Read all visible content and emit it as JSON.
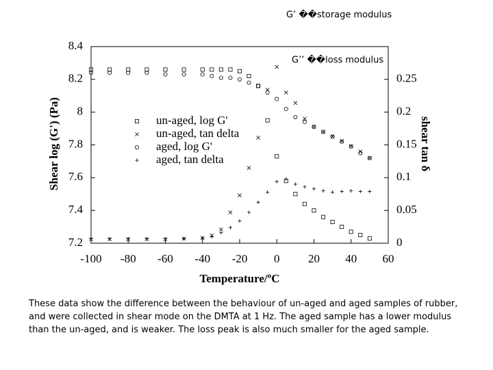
{
  "chart_data": {
    "type": "scatter",
    "annotations": [
      "G’ ��storage modulus",
      "G’’ ��loss modulus"
    ],
    "xlabel": "Temperature/ºC",
    "ylabel": "Shear log (G') (Pa)",
    "y2label": "shear tan δ",
    "xlim": [
      -100,
      60
    ],
    "xticks": [
      -100,
      -80,
      -60,
      -40,
      -20,
      0,
      20,
      40,
      60
    ],
    "ylim": [
      7.2,
      8.4
    ],
    "yticks": [
      7.2,
      7.4,
      7.6,
      7.8,
      8,
      8.2,
      8.4
    ],
    "y2lim": [
      0,
      0.3
    ],
    "y2ticks": [
      0,
      0.05,
      0.1,
      0.15,
      0.2,
      0.25
    ],
    "grid": false,
    "legend": "center-left",
    "series": [
      {
        "name": "un-aged, log G'",
        "color": "#000000",
        "marker": "square",
        "x": [
          -100,
          -90,
          -80,
          -70,
          -60,
          -50,
          -40,
          -35,
          -30,
          -25,
          -20,
          -15,
          -10,
          -5,
          0,
          5,
          10,
          15,
          20,
          25,
          30,
          35,
          40,
          45,
          50
        ],
        "values": [
          8.26,
          8.26,
          8.26,
          8.26,
          8.26,
          8.26,
          8.26,
          8.26,
          8.26,
          8.26,
          8.25,
          8.22,
          8.16,
          7.95,
          7.73,
          7.58,
          7.5,
          7.44,
          7.4,
          7.36,
          7.33,
          7.3,
          7.27,
          7.25,
          7.23
        ]
      },
      {
        "name": "un-aged, tan delta",
        "color": "#000000",
        "marker": "x",
        "axis": "y2",
        "x": [
          -100,
          -90,
          -80,
          -70,
          -60,
          -50,
          -40,
          -35,
          -30,
          -25,
          -20,
          -15,
          -10,
          -5,
          0,
          5,
          10,
          15,
          20,
          25,
          30,
          35,
          40,
          45,
          50
        ],
        "values": [
          0.006,
          0.006,
          0.006,
          0.006,
          0.006,
          0.007,
          0.008,
          0.012,
          0.021,
          0.047,
          0.073,
          0.115,
          0.161,
          0.234,
          0.269,
          0.23,
          0.214,
          0.19,
          0.178,
          0.17,
          0.163,
          0.156,
          0.148,
          0.14,
          0.13
        ]
      },
      {
        "name": "aged, log G'",
        "color": "#000000",
        "marker": "circle",
        "x": [
          -100,
          -90,
          -80,
          -70,
          -60,
          -50,
          -40,
          -35,
          -30,
          -25,
          -20,
          -15,
          -10,
          -5,
          0,
          5,
          10,
          15,
          20,
          25,
          30,
          35,
          40,
          45,
          50
        ],
        "values": [
          8.24,
          8.24,
          8.24,
          8.24,
          8.23,
          8.23,
          8.23,
          8.22,
          8.21,
          8.21,
          8.2,
          8.18,
          8.16,
          8.12,
          8.08,
          8.02,
          7.97,
          7.94,
          7.91,
          7.88,
          7.85,
          7.82,
          7.79,
          7.75,
          7.72
        ]
      },
      {
        "name": "aged, tan delta",
        "color": "#000000",
        "marker": "plus",
        "axis": "y2",
        "x": [
          -100,
          -90,
          -80,
          -70,
          -60,
          -50,
          -40,
          -35,
          -30,
          -25,
          -20,
          -15,
          -10,
          -5,
          0,
          5,
          10,
          15,
          20,
          25,
          30,
          35,
          40,
          45,
          50
        ],
        "values": [
          0.007,
          0.007,
          0.007,
          0.007,
          0.007,
          0.007,
          0.008,
          0.01,
          0.016,
          0.024,
          0.034,
          0.047,
          0.0625,
          0.078,
          0.094,
          0.098,
          0.09,
          0.086,
          0.083,
          0.08,
          0.078,
          0.079,
          0.08,
          0.079,
          0.079
        ]
      }
    ],
    "caption": "These data show the difference between the behaviour of un-aged and aged samples of rubber, and were collected in shear mode on the DMTA at 1 Hz. The aged sample has a lower modulus than the un-aged, and is weaker. The loss peak is also much smaller for the aged sample."
  }
}
